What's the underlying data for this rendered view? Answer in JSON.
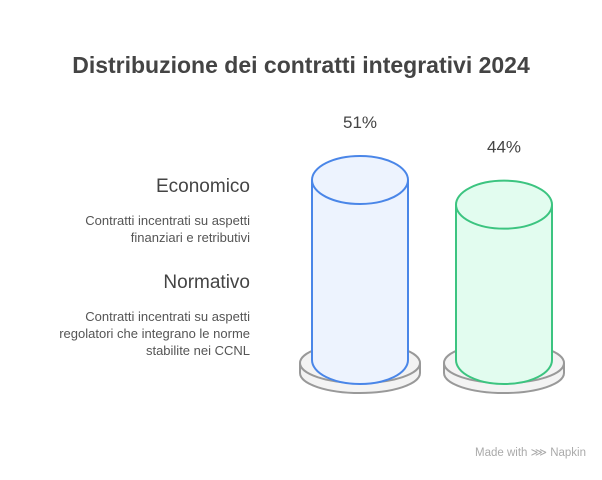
{
  "title": "Distribuzione dei contratti integrativi 2024",
  "chart_data": {
    "type": "bar",
    "title": "Distribuzione dei contratti integrativi 2024",
    "categories": [
      "Economico",
      "Normativo"
    ],
    "values": [
      51,
      44
    ],
    "value_labels": [
      "51%",
      "44%"
    ],
    "descriptions": [
      "Contratti incentrati su aspetti finanziari e retributivi",
      "Contratti incentrati su aspetti regolatori che integrano le norme stabilite nei CCNL"
    ],
    "colors": [
      {
        "stroke": "#4a86e8",
        "fill": "#edf3fe"
      },
      {
        "stroke": "#3cc480",
        "fill": "#e2fcef"
      }
    ]
  },
  "legend": {
    "items": [
      {
        "label": "Economico",
        "desc_lines": [
          "Contratti incentrati su aspetti",
          "finanziari e retributivi"
        ]
      },
      {
        "label": "Normativo",
        "desc_lines": [
          "Contratti incentrati su aspetti",
          "regolatori che integrano le norme",
          "stabilite nei CCNL"
        ]
      }
    ]
  },
  "branding": "Made with ⋙ Napkin"
}
